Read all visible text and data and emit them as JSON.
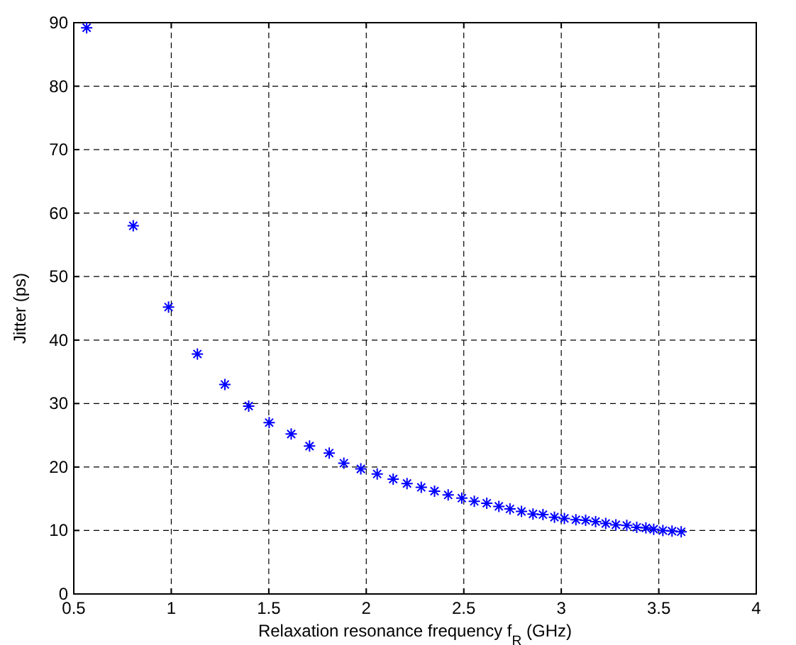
{
  "chart_data": {
    "type": "scatter",
    "xlabel": "Relaxation resonance frequency f$_{R}$ (GHz)",
    "ylabel": "Jitter  (ps)",
    "xlim": [
      0.5,
      4
    ],
    "xticks": [
      0.5,
      1,
      1.5,
      2,
      2.5,
      3,
      3.5,
      4
    ],
    "ylim": [
      0,
      90
    ],
    "yticks": [
      0,
      10,
      20,
      30,
      40,
      50,
      60,
      70,
      80,
      90
    ],
    "grid": true,
    "marker": "cross",
    "series": [
      {
        "color": "#0000ff",
        "x": [
          0.566,
          0.805,
          0.986,
          1.134,
          1.275,
          1.397,
          1.502,
          1.615,
          1.709,
          1.81,
          1.885,
          1.972,
          2.056,
          2.138,
          2.209,
          2.282,
          2.35,
          2.42,
          2.49,
          2.554,
          2.618,
          2.68,
          2.737,
          2.796,
          2.855,
          2.906,
          2.965,
          3.016,
          3.075,
          3.125,
          3.176,
          3.228,
          3.28,
          3.336,
          3.387,
          3.434,
          3.474,
          3.521,
          3.568,
          3.615
        ],
        "values": [
          89.2,
          58.0,
          45.2,
          37.8,
          33.0,
          29.6,
          27.0,
          25.2,
          23.3,
          22.2,
          20.6,
          19.7,
          18.9,
          18.1,
          17.4,
          16.8,
          16.2,
          15.6,
          15.1,
          14.6,
          14.3,
          13.8,
          13.4,
          13.0,
          12.6,
          12.5,
          12.1,
          11.9,
          11.7,
          11.6,
          11.4,
          11.1,
          10.9,
          10.8,
          10.5,
          10.4,
          10.2,
          10.0,
          9.9,
          9.8
        ]
      }
    ]
  }
}
